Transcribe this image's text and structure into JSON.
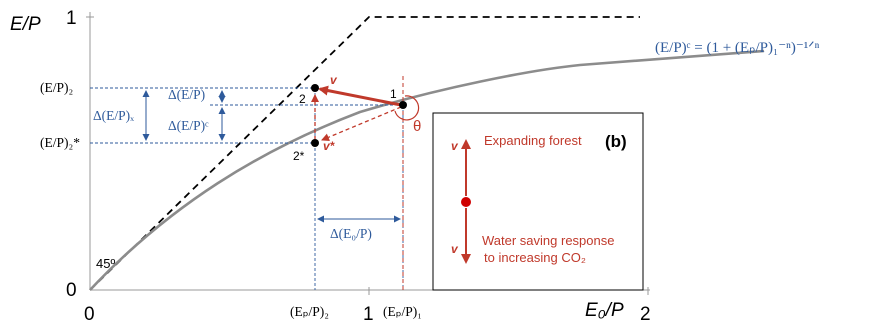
{
  "axes": {
    "y_title": "E/P",
    "x_title": "E₀/P",
    "y_tick_top": "1",
    "y_tick_zero": "0",
    "x_tick_zero": "0",
    "x_tick_one": "1",
    "x_tick_two": "2"
  },
  "labels": {
    "angle_45": "45º",
    "y_ep2": "(E/P)₂",
    "y_ep2star": "(E/P)₂*",
    "x_epp2": "(Eₚ/P)₂",
    "x_epp1": "(Eₚ/P)₁",
    "delta_ep": "Δ(E/P)",
    "delta_ep_x": "Δ(E/P)ₓ",
    "delta_ep_c": "Δ(E/P)ᶜ",
    "delta_e0p": "Δ(E₀/P)",
    "equation": "(E/P)ᶜ = (1 + (Eₚ/P)₁⁻ⁿ)⁻¹ᐟⁿ",
    "point_1": "1",
    "point_2": "2",
    "point_2star": "2*",
    "vec_v": "v",
    "vec_vstar": "v*",
    "theta": "θ"
  },
  "legend": {
    "panel_label": "(b)",
    "v_top": "v",
    "v_bottom": "v",
    "expanding": "Expanding forest",
    "water_line1": "Water saving response",
    "water_line2": "to increasing CO₂"
  },
  "colors": {
    "red": "#c0392b",
    "blue": "#2e5a9b",
    "curve": "#8c8c8c"
  }
}
